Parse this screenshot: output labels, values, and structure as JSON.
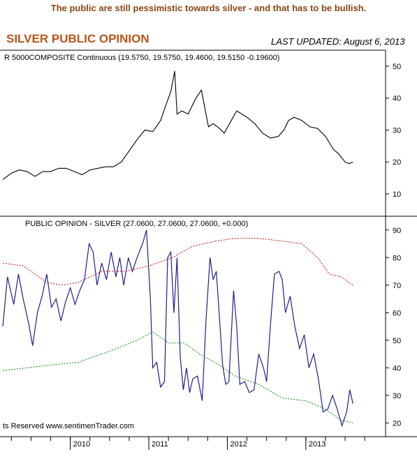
{
  "page": {
    "headline": "The public are still pessimistic towards silver - and that has to be bullish.",
    "title": "SILVER PUBLIC OPINION",
    "last_updated": "LAST UPDATED:  August 6, 2013"
  },
  "colors": {
    "price_line": "#000000",
    "opinion_line": "#1f1f8f",
    "upper_band": "#cc0000",
    "lower_band": "#008800",
    "headline": "#8b4513",
    "title": "#b8541a"
  },
  "chart_data": [
    {
      "type": "line",
      "label": "R 5000COMPOSITE Continuous (19.5750, 19.5750, 19.4600, 19.5150 -0.19600)",
      "ylim": [
        3,
        55
      ],
      "yticks": [
        10,
        20,
        30,
        40,
        50
      ],
      "xlim": [
        2009.14,
        2013.98
      ],
      "series": [
        {
          "points": [
            [
              2009.14,
              14.5
            ],
            [
              2009.25,
              16.5
            ],
            [
              2009.35,
              17.5
            ],
            [
              2009.45,
              17.0
            ],
            [
              2009.55,
              15.5
            ],
            [
              2009.65,
              17.0
            ],
            [
              2009.75,
              17.0
            ],
            [
              2009.85,
              18.0
            ],
            [
              2009.95,
              18.0
            ],
            [
              2010.05,
              17.0
            ],
            [
              2010.15,
              16.0
            ],
            [
              2010.25,
              17.5
            ],
            [
              2010.35,
              18.0
            ],
            [
              2010.45,
              18.5
            ],
            [
              2010.55,
              18.5
            ],
            [
              2010.65,
              20.0
            ],
            [
              2010.75,
              23.5
            ],
            [
              2010.85,
              27.0
            ],
            [
              2010.95,
              30.0
            ],
            [
              2011.05,
              29.5
            ],
            [
              2011.15,
              33.0
            ],
            [
              2011.22,
              38.0
            ],
            [
              2011.28,
              42.0
            ],
            [
              2011.33,
              48.5
            ],
            [
              2011.36,
              35.0
            ],
            [
              2011.42,
              36.0
            ],
            [
              2011.5,
              35.0
            ],
            [
              2011.6,
              40.0
            ],
            [
              2011.67,
              42.5
            ],
            [
              2011.72,
              36.0
            ],
            [
              2011.76,
              31.0
            ],
            [
              2011.82,
              32.0
            ],
            [
              2011.9,
              30.5
            ],
            [
              2011.96,
              29.0
            ],
            [
              2012.05,
              33.0
            ],
            [
              2012.12,
              36.0
            ],
            [
              2012.25,
              34.0
            ],
            [
              2012.35,
              32.0
            ],
            [
              2012.45,
              29.0
            ],
            [
              2012.55,
              27.5
            ],
            [
              2012.65,
              28.0
            ],
            [
              2012.72,
              30.0
            ],
            [
              2012.78,
              33.0
            ],
            [
              2012.85,
              34.0
            ],
            [
              2012.95,
              33.0
            ],
            [
              2013.05,
              31.0
            ],
            [
              2013.15,
              30.5
            ],
            [
              2013.25,
              28.0
            ],
            [
              2013.35,
              24.0
            ],
            [
              2013.42,
              22.5
            ],
            [
              2013.5,
              20.0
            ],
            [
              2013.55,
              19.5
            ],
            [
              2013.6,
              20.0
            ]
          ]
        }
      ]
    },
    {
      "type": "line",
      "label": "PUBLIC OPINION - SILVER (27.0600, 27.0600, 27.0600, +0.000)",
      "ylim": [
        15,
        95
      ],
      "yticks": [
        20,
        30,
        40,
        50,
        60,
        70,
        80,
        90
      ],
      "xlim": [
        2009.14,
        2013.98
      ],
      "xticks": [
        "2010",
        "2011",
        "2012",
        "2013"
      ],
      "xtick_values": [
        2010,
        2011,
        2012,
        2013
      ],
      "watermark": "ts Reserved  www.sentimenTrader.com",
      "series": [
        {
          "name": "opinion",
          "points": [
            [
              2009.14,
              55
            ],
            [
              2009.2,
              73
            ],
            [
              2009.28,
              63
            ],
            [
              2009.34,
              74
            ],
            [
              2009.4,
              65
            ],
            [
              2009.47,
              56
            ],
            [
              2009.52,
              48
            ],
            [
              2009.58,
              60
            ],
            [
              2009.64,
              66
            ],
            [
              2009.7,
              74
            ],
            [
              2009.76,
              62
            ],
            [
              2009.82,
              65
            ],
            [
              2009.88,
              57
            ],
            [
              2009.94,
              64
            ],
            [
              2010.0,
              69
            ],
            [
              2010.06,
              63
            ],
            [
              2010.12,
              68
            ],
            [
              2010.18,
              72
            ],
            [
              2010.24,
              85
            ],
            [
              2010.29,
              82
            ],
            [
              2010.34,
              70
            ],
            [
              2010.4,
              78
            ],
            [
              2010.46,
              72
            ],
            [
              2010.52,
              82
            ],
            [
              2010.58,
              73
            ],
            [
              2010.63,
              80
            ],
            [
              2010.68,
              70
            ],
            [
              2010.74,
              80
            ],
            [
              2010.79,
              75
            ],
            [
              2010.85,
              80
            ],
            [
              2010.92,
              85
            ],
            [
              2010.97,
              90
            ],
            [
              2011.02,
              65
            ],
            [
              2011.05,
              40
            ],
            [
              2011.1,
              42
            ],
            [
              2011.15,
              33
            ],
            [
              2011.2,
              35
            ],
            [
              2011.24,
              80
            ],
            [
              2011.28,
              82
            ],
            [
              2011.32,
              60
            ],
            [
              2011.36,
              80
            ],
            [
              2011.4,
              44
            ],
            [
              2011.44,
              32
            ],
            [
              2011.48,
              40
            ],
            [
              2011.52,
              31
            ],
            [
              2011.56,
              36
            ],
            [
              2011.62,
              37
            ],
            [
              2011.68,
              28
            ],
            [
              2011.73,
              58
            ],
            [
              2011.78,
              80
            ],
            [
              2011.82,
              72
            ],
            [
              2011.86,
              75
            ],
            [
              2011.9,
              58
            ],
            [
              2011.94,
              41
            ],
            [
              2011.98,
              34
            ],
            [
              2012.02,
              35
            ],
            [
              2012.08,
              68
            ],
            [
              2012.12,
              55
            ],
            [
              2012.16,
              34
            ],
            [
              2012.22,
              35
            ],
            [
              2012.28,
              31
            ],
            [
              2012.34,
              32
            ],
            [
              2012.4,
              45
            ],
            [
              2012.46,
              40
            ],
            [
              2012.5,
              35
            ],
            [
              2012.55,
              56
            ],
            [
              2012.6,
              74
            ],
            [
              2012.66,
              75
            ],
            [
              2012.7,
              72
            ],
            [
              2012.74,
              60
            ],
            [
              2012.8,
              66
            ],
            [
              2012.86,
              55
            ],
            [
              2012.92,
              47
            ],
            [
              2012.98,
              52
            ],
            [
              2013.04,
              40
            ],
            [
              2013.1,
              45
            ],
            [
              2013.16,
              36
            ],
            [
              2013.22,
              24
            ],
            [
              2013.28,
              25
            ],
            [
              2013.34,
              30
            ],
            [
              2013.4,
              25
            ],
            [
              2013.46,
              19
            ],
            [
              2013.52,
              24
            ],
            [
              2013.56,
              32
            ],
            [
              2013.6,
              27
            ]
          ]
        },
        {
          "name": "upper_band",
          "points": [
            [
              2009.14,
              78
            ],
            [
              2009.4,
              77
            ],
            [
              2009.7,
              71
            ],
            [
              2009.9,
              70
            ],
            [
              2010.1,
              71
            ],
            [
              2010.4,
              75
            ],
            [
              2010.7,
              75
            ],
            [
              2011.0,
              77
            ],
            [
              2011.3,
              80
            ],
            [
              2011.55,
              84
            ],
            [
              2011.85,
              86
            ],
            [
              2012.1,
              87
            ],
            [
              2012.4,
              87
            ],
            [
              2012.7,
              86
            ],
            [
              2012.95,
              85
            ],
            [
              2013.15,
              80
            ],
            [
              2013.3,
              74
            ],
            [
              2013.45,
              73
            ],
            [
              2013.6,
              70
            ]
          ]
        },
        {
          "name": "lower_band",
          "points": [
            [
              2009.14,
              39
            ],
            [
              2009.45,
              40
            ],
            [
              2009.75,
              41
            ],
            [
              2010.1,
              42
            ],
            [
              2010.5,
              46
            ],
            [
              2010.85,
              50
            ],
            [
              2011.05,
              53
            ],
            [
              2011.25,
              49
            ],
            [
              2011.45,
              49
            ],
            [
              2011.65,
              45
            ],
            [
              2011.9,
              41
            ],
            [
              2012.1,
              37
            ],
            [
              2012.4,
              34
            ],
            [
              2012.7,
              29
            ],
            [
              2013.0,
              28
            ],
            [
              2013.25,
              25
            ],
            [
              2013.45,
              21
            ],
            [
              2013.6,
              20
            ]
          ]
        }
      ]
    }
  ]
}
